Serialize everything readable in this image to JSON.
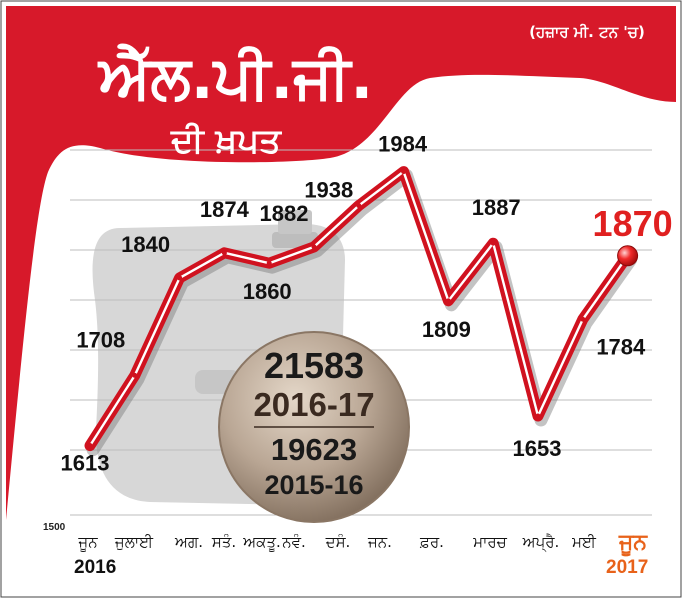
{
  "header": {
    "title": "ਐੱਲ.ਪੀ.ਜੀ.",
    "subtitle": "ਦੀ ਖ਼ਪਤ",
    "unit_note": "(ਹਜ਼ਾਰ ਮੀ. ਟਨ 'ਚ)"
  },
  "colors": {
    "banner_red": "#d7192a",
    "line_red": "#d0121f",
    "highlight_red": "#e02020",
    "accent_orange": "#e8621a",
    "medallion": "#b5a291",
    "gray_shape": "#d7d7d7"
  },
  "chart_data": {
    "type": "line",
    "x": [
      "ਜੂਨ",
      "ਜੁਲਾਈ",
      "ਅਗ.",
      "ਸਤੰ.",
      "ਅਕਤੂ.",
      "ਨਵੰ.",
      "ਦਸੰ.",
      "ਜਨ.",
      "ਫ਼ਰ.",
      "ਮਾਰਚ",
      "ਅਪ੍ਰੈ.",
      "ਮਈ",
      "ਜੂਨ"
    ],
    "values": [
      1613,
      1708,
      1840,
      1874,
      1860,
      1882,
      1938,
      1984,
      1809,
      1887,
      1653,
      1784,
      1870
    ],
    "year_labels": [
      "2016",
      "2017"
    ],
    "y_tick_label": "1500",
    "ylim": [
      1500,
      2000
    ],
    "grid": true,
    "highlight_last": true
  },
  "totals": {
    "current_total": "21583",
    "current_year": "2016-17",
    "previous_total": "19623",
    "previous_year": "2015-16"
  }
}
